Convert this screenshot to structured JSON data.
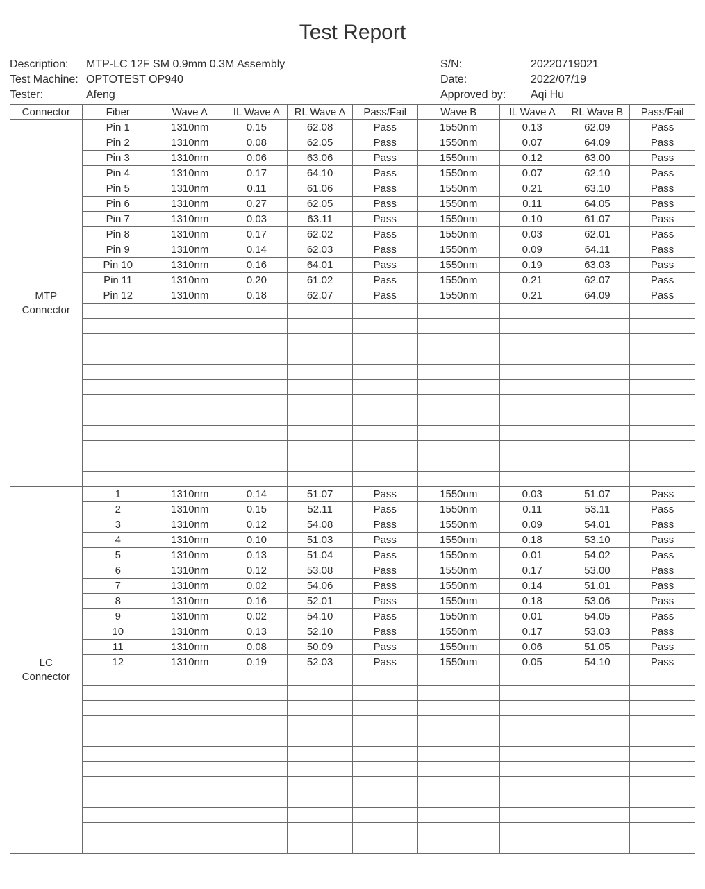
{
  "title": "Test Report",
  "meta": {
    "description_label": "Description:",
    "description_value": "MTP-LC 12F SM  0.9mm 0.3M Assembly",
    "sn_label": "S/N:",
    "sn_value": "20220719021",
    "machine_label": "Test Machine:",
    "machine_value": "OPTOTEST OP940",
    "date_label": "Date:",
    "date_value": "2022/07/19",
    "tester_label": "Tester:",
    "tester_value": "Afeng",
    "approved_label": "Approved by:",
    "approved_value": "Aqi Hu"
  },
  "headers": {
    "connector": "Connector",
    "fiber": "Fiber",
    "wave_a": "Wave A",
    "il_wave_a": "IL Wave A",
    "rl_wave_a": "RL Wave A",
    "pass_fail_a": "Pass/Fail",
    "wave_b": "Wave B",
    "il_wave_b": "IL Wave A",
    "rl_wave_b": "RL Wave B",
    "pass_fail_b": "Pass/Fail"
  },
  "sections": [
    {
      "label": "MTP\nConnector",
      "row_count": 24,
      "rows": [
        {
          "fiber": "Pin 1",
          "wave_a": "1310nm",
          "il_a": "0.15",
          "rl_a": "62.08",
          "pf_a": "Pass",
          "wave_b": "1550nm",
          "il_b": "0.13",
          "rl_b": "62.09",
          "pf_b": "Pass"
        },
        {
          "fiber": "Pin 2",
          "wave_a": "1310nm",
          "il_a": "0.08",
          "rl_a": "62.05",
          "pf_a": "Pass",
          "wave_b": "1550nm",
          "il_b": "0.07",
          "rl_b": "64.09",
          "pf_b": "Pass"
        },
        {
          "fiber": "Pin 3",
          "wave_a": "1310nm",
          "il_a": "0.06",
          "rl_a": "63.06",
          "pf_a": "Pass",
          "wave_b": "1550nm",
          "il_b": "0.12",
          "rl_b": "63.00",
          "pf_b": "Pass"
        },
        {
          "fiber": "Pin 4",
          "wave_a": "1310nm",
          "il_a": "0.17",
          "rl_a": "64.10",
          "pf_a": "Pass",
          "wave_b": "1550nm",
          "il_b": "0.07",
          "rl_b": "62.10",
          "pf_b": "Pass"
        },
        {
          "fiber": "Pin 5",
          "wave_a": "1310nm",
          "il_a": "0.11",
          "rl_a": "61.06",
          "pf_a": "Pass",
          "wave_b": "1550nm",
          "il_b": "0.21",
          "rl_b": "63.10",
          "pf_b": "Pass"
        },
        {
          "fiber": "Pin 6",
          "wave_a": "1310nm",
          "il_a": "0.27",
          "rl_a": "62.05",
          "pf_a": "Pass",
          "wave_b": "1550nm",
          "il_b": "0.11",
          "rl_b": "64.05",
          "pf_b": "Pass"
        },
        {
          "fiber": "Pin 7",
          "wave_a": "1310nm",
          "il_a": "0.03",
          "rl_a": "63.11",
          "pf_a": "Pass",
          "wave_b": "1550nm",
          "il_b": "0.10",
          "rl_b": "61.07",
          "pf_b": "Pass"
        },
        {
          "fiber": "Pin 8",
          "wave_a": "1310nm",
          "il_a": "0.17",
          "rl_a": "62.02",
          "pf_a": "Pass",
          "wave_b": "1550nm",
          "il_b": "0.03",
          "rl_b": "62.01",
          "pf_b": "Pass"
        },
        {
          "fiber": "Pin 9",
          "wave_a": "1310nm",
          "il_a": "0.14",
          "rl_a": "62.03",
          "pf_a": "Pass",
          "wave_b": "1550nm",
          "il_b": "0.09",
          "rl_b": "64.11",
          "pf_b": "Pass"
        },
        {
          "fiber": "Pin 10",
          "wave_a": "1310nm",
          "il_a": "0.16",
          "rl_a": "64.01",
          "pf_a": "Pass",
          "wave_b": "1550nm",
          "il_b": "0.19",
          "rl_b": "63.03",
          "pf_b": "Pass"
        },
        {
          "fiber": "Pin 11",
          "wave_a": "1310nm",
          "il_a": "0.20",
          "rl_a": "61.02",
          "pf_a": "Pass",
          "wave_b": "1550nm",
          "il_b": "0.21",
          "rl_b": "62.07",
          "pf_b": "Pass"
        },
        {
          "fiber": "Pin 12",
          "wave_a": "1310nm",
          "il_a": "0.18",
          "rl_a": "62.07",
          "pf_a": "Pass",
          "wave_b": "1550nm",
          "il_b": "0.21",
          "rl_b": "64.09",
          "pf_b": "Pass"
        }
      ]
    },
    {
      "label": "LC\nConnector",
      "row_count": 24,
      "rows": [
        {
          "fiber": "1",
          "wave_a": "1310nm",
          "il_a": "0.14",
          "rl_a": "51.07",
          "pf_a": "Pass",
          "wave_b": "1550nm",
          "il_b": "0.03",
          "rl_b": "51.07",
          "pf_b": "Pass"
        },
        {
          "fiber": "2",
          "wave_a": "1310nm",
          "il_a": "0.15",
          "rl_a": "52.11",
          "pf_a": "Pass",
          "wave_b": "1550nm",
          "il_b": "0.11",
          "rl_b": "53.11",
          "pf_b": "Pass"
        },
        {
          "fiber": "3",
          "wave_a": "1310nm",
          "il_a": "0.12",
          "rl_a": "54.08",
          "pf_a": "Pass",
          "wave_b": "1550nm",
          "il_b": "0.09",
          "rl_b": "54.01",
          "pf_b": "Pass"
        },
        {
          "fiber": "4",
          "wave_a": "1310nm",
          "il_a": "0.10",
          "rl_a": "51.03",
          "pf_a": "Pass",
          "wave_b": "1550nm",
          "il_b": "0.18",
          "rl_b": "53.10",
          "pf_b": "Pass"
        },
        {
          "fiber": "5",
          "wave_a": "1310nm",
          "il_a": "0.13",
          "rl_a": "51.04",
          "pf_a": "Pass",
          "wave_b": "1550nm",
          "il_b": "0.01",
          "rl_b": "54.02",
          "pf_b": "Pass"
        },
        {
          "fiber": "6",
          "wave_a": "1310nm",
          "il_a": "0.12",
          "rl_a": "53.08",
          "pf_a": "Pass",
          "wave_b": "1550nm",
          "il_b": "0.17",
          "rl_b": "53.00",
          "pf_b": "Pass"
        },
        {
          "fiber": "7",
          "wave_a": "1310nm",
          "il_a": "0.02",
          "rl_a": "54.06",
          "pf_a": "Pass",
          "wave_b": "1550nm",
          "il_b": "0.14",
          "rl_b": "51.01",
          "pf_b": "Pass"
        },
        {
          "fiber": "8",
          "wave_a": "1310nm",
          "il_a": "0.16",
          "rl_a": "52.01",
          "pf_a": "Pass",
          "wave_b": "1550nm",
          "il_b": "0.18",
          "rl_b": "53.06",
          "pf_b": "Pass"
        },
        {
          "fiber": "9",
          "wave_a": "1310nm",
          "il_a": "0.02",
          "rl_a": "54.10",
          "pf_a": "Pass",
          "wave_b": "1550nm",
          "il_b": "0.01",
          "rl_b": "54.05",
          "pf_b": "Pass"
        },
        {
          "fiber": "10",
          "wave_a": "1310nm",
          "il_a": "0.13",
          "rl_a": "52.10",
          "pf_a": "Pass",
          "wave_b": "1550nm",
          "il_b": "0.17",
          "rl_b": "53.03",
          "pf_b": "Pass"
        },
        {
          "fiber": "11",
          "wave_a": "1310nm",
          "il_a": "0.08",
          "rl_a": "50.09",
          "pf_a": "Pass",
          "wave_b": "1550nm",
          "il_b": "0.06",
          "rl_b": "51.05",
          "pf_b": "Pass"
        },
        {
          "fiber": "12",
          "wave_a": "1310nm",
          "il_a": "0.19",
          "rl_a": "52.03",
          "pf_a": "Pass",
          "wave_b": "1550nm",
          "il_b": "0.05",
          "rl_b": "54.10",
          "pf_b": "Pass"
        }
      ]
    }
  ]
}
